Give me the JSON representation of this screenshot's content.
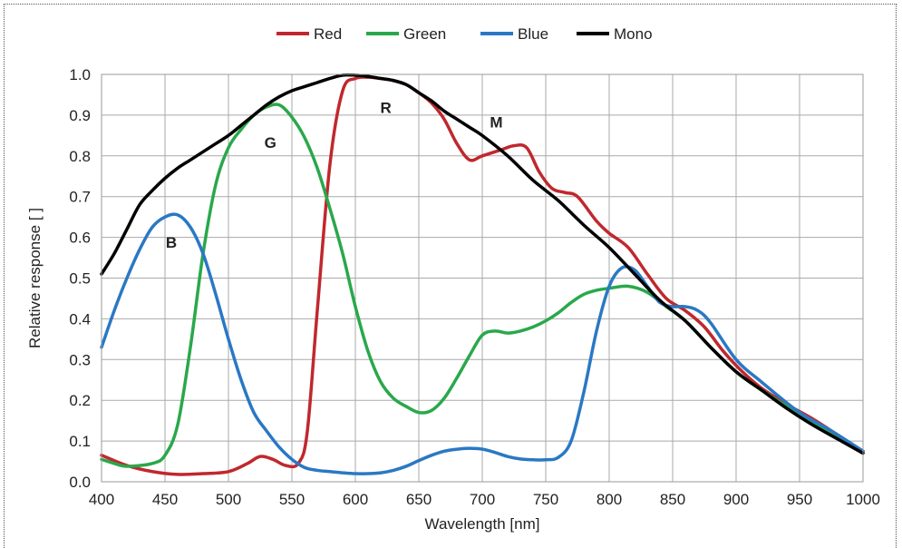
{
  "chart_data": {
    "type": "line",
    "xlabel": "Wavelength [nm]",
    "ylabel": "Relative response [ ]",
    "xlim": [
      400,
      1000
    ],
    "ylim": [
      0.0,
      1.0
    ],
    "xticks": [
      "400",
      "450",
      "500",
      "550",
      "600",
      "650",
      "700",
      "750",
      "800",
      "850",
      "900",
      "950",
      "1000"
    ],
    "yticks": [
      "0.0",
      "0.1",
      "0.2",
      "0.3",
      "0.4",
      "0.5",
      "0.6",
      "0.7",
      "0.8",
      "0.9",
      "1.0"
    ],
    "grid": true,
    "legend_position": "top",
    "series": [
      {
        "name": "Red",
        "color": "#c0282d",
        "x": [
          400,
          420,
          440,
          460,
          480,
          500,
          515,
          525,
          535,
          545,
          555,
          562,
          570,
          580,
          590,
          600,
          610,
          620,
          630,
          640,
          650,
          660,
          670,
          680,
          690,
          700,
          715,
          725,
          735,
          745,
          755,
          765,
          775,
          790,
          800,
          815,
          830,
          845,
          860,
          875,
          890,
          905,
          920,
          940,
          960,
          980,
          1000
        ],
        "y": [
          0.065,
          0.04,
          0.025,
          0.018,
          0.02,
          0.025,
          0.045,
          0.062,
          0.055,
          0.04,
          0.045,
          0.12,
          0.42,
          0.78,
          0.96,
          0.99,
          0.993,
          0.99,
          0.985,
          0.975,
          0.955,
          0.93,
          0.89,
          0.83,
          0.79,
          0.8,
          0.815,
          0.825,
          0.82,
          0.76,
          0.72,
          0.71,
          0.7,
          0.64,
          0.61,
          0.575,
          0.51,
          0.45,
          0.42,
          0.38,
          0.32,
          0.27,
          0.23,
          0.19,
          0.155,
          0.115,
          0.075
        ]
      },
      {
        "name": "Green",
        "color": "#29a84b",
        "x": [
          400,
          410,
          420,
          440,
          450,
          460,
          470,
          480,
          490,
          500,
          510,
          520,
          530,
          540,
          550,
          560,
          570,
          580,
          590,
          600,
          610,
          620,
          630,
          640,
          650,
          660,
          670,
          680,
          690,
          700,
          710,
          720,
          730,
          740,
          750,
          760,
          770,
          780,
          790,
          800,
          815,
          830,
          845,
          860,
          880,
          900,
          920,
          950,
          975,
          1000
        ],
        "y": [
          0.055,
          0.045,
          0.038,
          0.045,
          0.065,
          0.14,
          0.33,
          0.56,
          0.73,
          0.82,
          0.865,
          0.9,
          0.92,
          0.925,
          0.895,
          0.845,
          0.77,
          0.67,
          0.56,
          0.43,
          0.32,
          0.245,
          0.205,
          0.185,
          0.17,
          0.175,
          0.205,
          0.255,
          0.31,
          0.36,
          0.37,
          0.365,
          0.37,
          0.38,
          0.395,
          0.415,
          0.44,
          0.46,
          0.47,
          0.475,
          0.48,
          0.465,
          0.43,
          0.395,
          0.33,
          0.27,
          0.225,
          0.165,
          0.12,
          0.075
        ]
      },
      {
        "name": "Blue",
        "color": "#2a78c4",
        "x": [
          400,
          410,
          420,
          430,
          440,
          450,
          460,
          470,
          480,
          490,
          500,
          510,
          520,
          530,
          540,
          550,
          560,
          570,
          580,
          590,
          600,
          610,
          620,
          630,
          640,
          650,
          660,
          670,
          680,
          690,
          700,
          710,
          720,
          730,
          740,
          750,
          760,
          770,
          780,
          790,
          800,
          810,
          820,
          830,
          840,
          850,
          860,
          870,
          880,
          900,
          920,
          950,
          975,
          1000
        ],
        "y": [
          0.33,
          0.42,
          0.5,
          0.57,
          0.625,
          0.65,
          0.655,
          0.625,
          0.56,
          0.46,
          0.35,
          0.25,
          0.17,
          0.125,
          0.085,
          0.055,
          0.035,
          0.028,
          0.025,
          0.022,
          0.02,
          0.02,
          0.022,
          0.028,
          0.038,
          0.052,
          0.065,
          0.075,
          0.08,
          0.082,
          0.08,
          0.072,
          0.062,
          0.056,
          0.054,
          0.054,
          0.06,
          0.1,
          0.22,
          0.37,
          0.48,
          0.525,
          0.52,
          0.48,
          0.44,
          0.43,
          0.43,
          0.42,
          0.39,
          0.3,
          0.245,
          0.17,
          0.125,
          0.075
        ]
      },
      {
        "name": "Mono",
        "color": "#000000",
        "x": [
          400,
          410,
          420,
          430,
          440,
          450,
          460,
          470,
          480,
          490,
          500,
          510,
          520,
          530,
          540,
          550,
          560,
          570,
          580,
          590,
          600,
          610,
          620,
          630,
          640,
          650,
          660,
          670,
          680,
          690,
          700,
          720,
          740,
          760,
          780,
          800,
          820,
          840,
          860,
          880,
          900,
          920,
          940,
          960,
          980,
          1000
        ],
        "y": [
          0.51,
          0.56,
          0.62,
          0.68,
          0.715,
          0.745,
          0.77,
          0.79,
          0.81,
          0.83,
          0.85,
          0.875,
          0.9,
          0.925,
          0.945,
          0.96,
          0.97,
          0.98,
          0.99,
          0.998,
          0.998,
          0.995,
          0.99,
          0.985,
          0.975,
          0.955,
          0.935,
          0.91,
          0.89,
          0.87,
          0.85,
          0.8,
          0.74,
          0.69,
          0.63,
          0.575,
          0.51,
          0.445,
          0.395,
          0.33,
          0.27,
          0.225,
          0.18,
          0.14,
          0.105,
          0.07
        ]
      }
    ],
    "annotations": [
      {
        "text": "B",
        "x": 455,
        "y": 0.575
      },
      {
        "text": "G",
        "x": 533,
        "y": 0.82
      },
      {
        "text": "R",
        "x": 624,
        "y": 0.905
      },
      {
        "text": "M",
        "x": 711,
        "y": 0.87
      }
    ]
  }
}
